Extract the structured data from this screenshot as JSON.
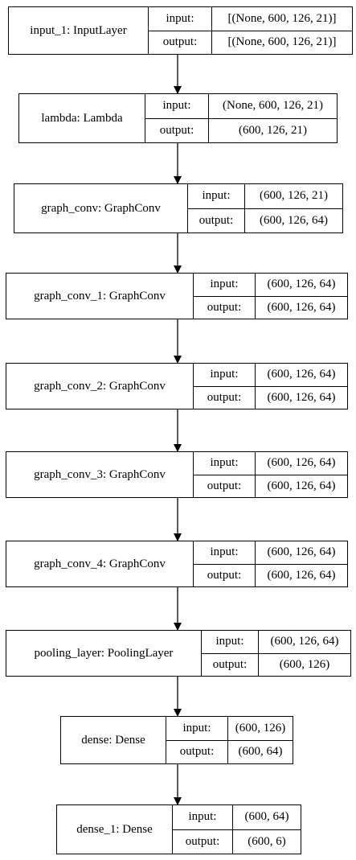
{
  "layers": [
    {
      "name": "input_1: InputLayer",
      "input_label": "input:",
      "output_label": "output:",
      "input": "[(None, 600, 126, 21)]",
      "output": "[(None, 600, 126, 21)]"
    },
    {
      "name": "lambda: Lambda",
      "input_label": "input:",
      "output_label": "output:",
      "input": "(None, 600, 126, 21)",
      "output": "(600, 126, 21)"
    },
    {
      "name": "graph_conv: GraphConv",
      "input_label": "input:",
      "output_label": "output:",
      "input": "(600, 126, 21)",
      "output": "(600, 126, 64)"
    },
    {
      "name": "graph_conv_1: GraphConv",
      "input_label": "input:",
      "output_label": "output:",
      "input": "(600, 126, 64)",
      "output": "(600, 126, 64)"
    },
    {
      "name": "graph_conv_2: GraphConv",
      "input_label": "input:",
      "output_label": "output:",
      "input": "(600, 126, 64)",
      "output": "(600, 126, 64)"
    },
    {
      "name": "graph_conv_3: GraphConv",
      "input_label": "input:",
      "output_label": "output:",
      "input": "(600, 126, 64)",
      "output": "(600, 126, 64)"
    },
    {
      "name": "graph_conv_4: GraphConv",
      "input_label": "input:",
      "output_label": "output:",
      "input": "(600, 126, 64)",
      "output": "(600, 126, 64)"
    },
    {
      "name": "pooling_layer: PoolingLayer",
      "input_label": "input:",
      "output_label": "output:",
      "input": "(600, 126, 64)",
      "output": "(600, 126)"
    },
    {
      "name": "dense: Dense",
      "input_label": "input:",
      "output_label": "output:",
      "input": "(600, 126)",
      "output": "(600, 64)"
    },
    {
      "name": "dense_1: Dense",
      "input_label": "input:",
      "output_label": "output:",
      "input": "(600, 64)",
      "output": "(600, 6)"
    }
  ],
  "edges": [
    {
      "from": "input_1",
      "to": "lambda"
    },
    {
      "from": "lambda",
      "to": "graph_conv"
    },
    {
      "from": "graph_conv",
      "to": "graph_conv_1"
    },
    {
      "from": "graph_conv_1",
      "to": "graph_conv_2"
    },
    {
      "from": "graph_conv_2",
      "to": "graph_conv_3"
    },
    {
      "from": "graph_conv_3",
      "to": "graph_conv_4"
    },
    {
      "from": "graph_conv_4",
      "to": "pooling_layer"
    },
    {
      "from": "pooling_layer",
      "to": "dense"
    },
    {
      "from": "dense",
      "to": "dense_1"
    }
  ]
}
